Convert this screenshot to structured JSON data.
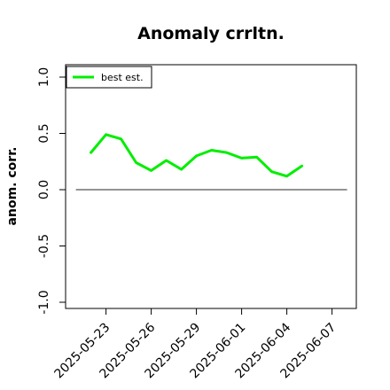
{
  "chart_data": {
    "type": "line",
    "title": "Anomaly crrltn.",
    "xlabel": "",
    "ylabel": "anom. corr.",
    "ylim": [
      -1.0,
      1.0
    ],
    "yticks": [
      "-1.0",
      "-0.5",
      "0.0",
      "0.5",
      "1.0"
    ],
    "xticks": [
      "2025-05-23",
      "2025-05-26",
      "2025-05-29",
      "2025-06-01",
      "2025-06-04",
      "2025-06-07"
    ],
    "x": [
      "2025-05-22",
      "2025-05-23",
      "2025-05-24",
      "2025-05-25",
      "2025-05-26",
      "2025-05-27",
      "2025-05-28",
      "2025-05-29",
      "2025-05-30",
      "2025-05-31",
      "2025-06-01",
      "2025-06-02",
      "2025-06-03",
      "2025-06-04",
      "2025-06-05"
    ],
    "series": [
      {
        "name": "best est.",
        "color": "#00ee00",
        "values": [
          0.33,
          0.49,
          0.45,
          0.24,
          0.17,
          0.26,
          0.18,
          0.3,
          0.35,
          0.33,
          0.28,
          0.29,
          0.16,
          0.12,
          0.21
        ]
      }
    ],
    "reference_line": {
      "y": 0.0,
      "x_from": "2025-05-21",
      "x_to": "2025-06-08",
      "color": "#555555"
    },
    "grid": false,
    "legend": "top-left"
  }
}
